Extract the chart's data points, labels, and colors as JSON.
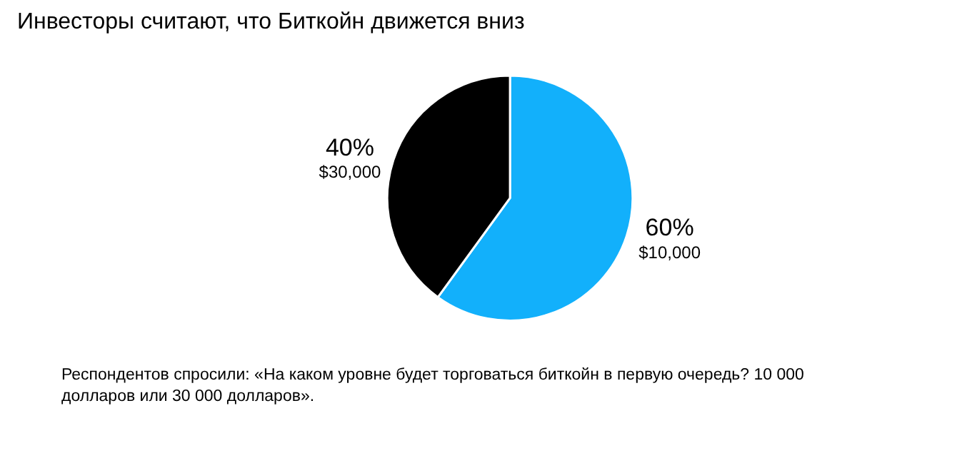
{
  "chart_data": {
    "type": "pie",
    "title": "Инвесторы считают, что Биткойн движется вниз",
    "categories": [
      "$10,000",
      "$30,000"
    ],
    "values": [
      60,
      40
    ],
    "value_labels": [
      "60%",
      "40%"
    ],
    "colors": [
      "#12b0fb",
      "#000000"
    ],
    "annotations": [
      "Респондентов спросили: «На каком уровне будет торговаться биткойн в первую очередь? 10 000 долларов или 30 000 долларов»."
    ]
  }
}
